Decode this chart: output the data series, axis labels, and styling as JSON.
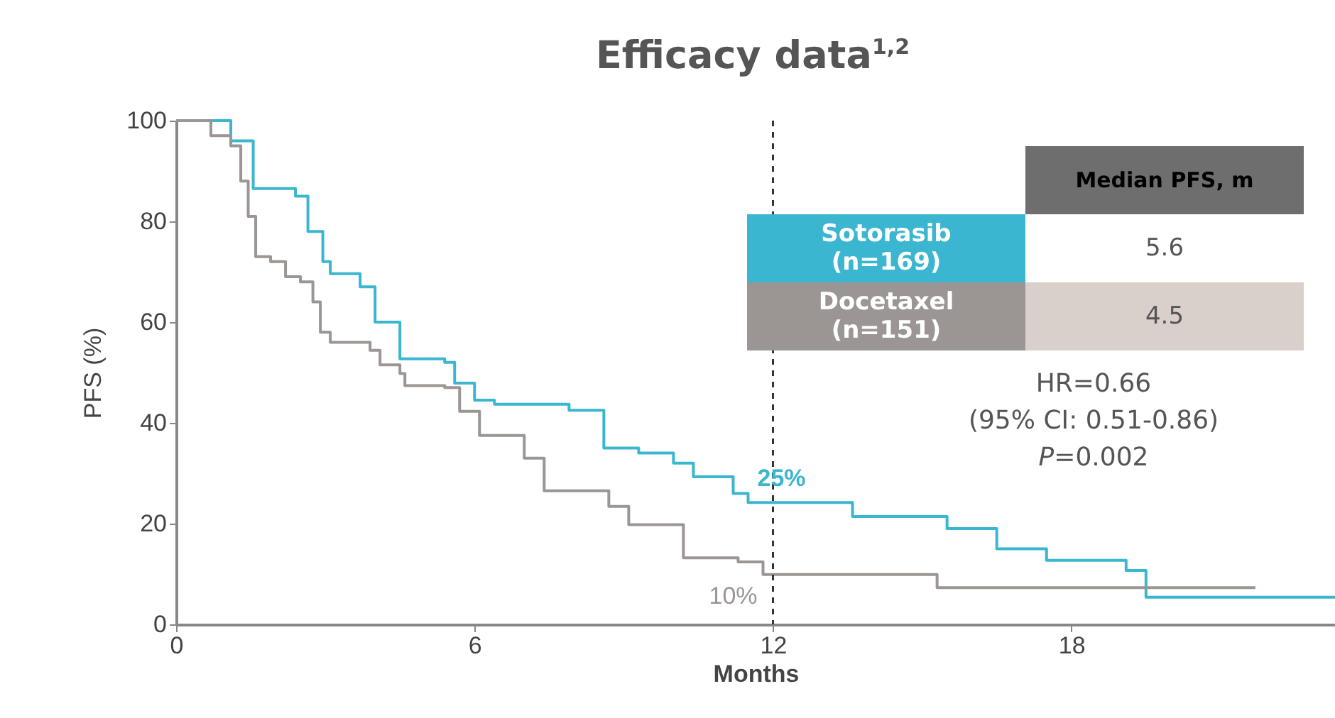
{
  "chart_data": {
    "type": "step",
    "title": "Efficacy data$^{1,2}$",
    "xlabel": "Months",
    "ylabel": "PFS (%)",
    "xlim": [
      0,
      23.3
    ],
    "xticks": [
      0,
      6,
      12,
      18
    ],
    "ylim": [
      0,
      100
    ],
    "yticks": [
      0,
      20,
      40,
      60,
      80,
      100
    ],
    "grid": false,
    "legend": "top right",
    "line_style": "solid",
    "marker": "none",
    "series": [
      {
        "name": "Sotorasib (n=169)",
        "color": "#3bb6d0",
        "x": [
          0,
          0.83,
          1.1,
          1.55,
          2.4,
          2.65,
          2.95,
          3.1,
          3.7,
          4.0,
          4.5,
          5.4,
          5.6,
          6.0,
          6.4,
          7.9,
          8.3,
          8.6,
          9.3,
          10.0,
          10.4,
          11.2,
          11.5,
          13.2,
          13.6,
          15.4,
          15.5,
          16.5,
          17.5,
          19.1,
          19.5,
          23.3
        ],
        "values": [
          100,
          100,
          96,
          86.5,
          85,
          78,
          72,
          69.6,
          67,
          60,
          52.7,
          52,
          47.9,
          44.5,
          43.7,
          42.5,
          42.5,
          35,
          34,
          32,
          29.3,
          26,
          24.2,
          24.2,
          21.4,
          21.4,
          19,
          15,
          12.7,
          10.7,
          5.4,
          5.4
        ]
      },
      {
        "name": "Docetaxel (n=151)",
        "color": "#9b9593",
        "x": [
          0,
          0.7,
          1.1,
          1.3,
          1.45,
          1.6,
          1.9,
          2.2,
          2.5,
          2.75,
          2.9,
          3.1,
          3.9,
          4.1,
          4.5,
          4.6,
          5.4,
          5.7,
          6.1,
          7.0,
          7.4,
          8.4,
          8.7,
          9.1,
          10.2,
          11.3,
          11.8,
          15.3,
          21.7
        ],
        "values": [
          100,
          97,
          95,
          88,
          81,
          73,
          72,
          69,
          68,
          64,
          58,
          56,
          54.4,
          51.5,
          49.8,
          47.4,
          47,
          42.3,
          37.5,
          33,
          26.5,
          26.5,
          23.4,
          19.8,
          13.2,
          12.4,
          9.9,
          7.3,
          7.3
        ]
      }
    ],
    "ref_lines": [
      {
        "axis": "x",
        "value": 12,
        "line_style": "dashed",
        "color": "#333333"
      }
    ],
    "annotations": [
      "Median PFS, m",
      "5.6",
      "4.5",
      "HR=0.66",
      "(95% CI: 0.51-0.86)",
      "P=0.002",
      {
        "text": "25%",
        "x": 12,
        "y": 25
      },
      {
        "text": "10%",
        "x": 12,
        "y": 10
      }
    ]
  }
}
